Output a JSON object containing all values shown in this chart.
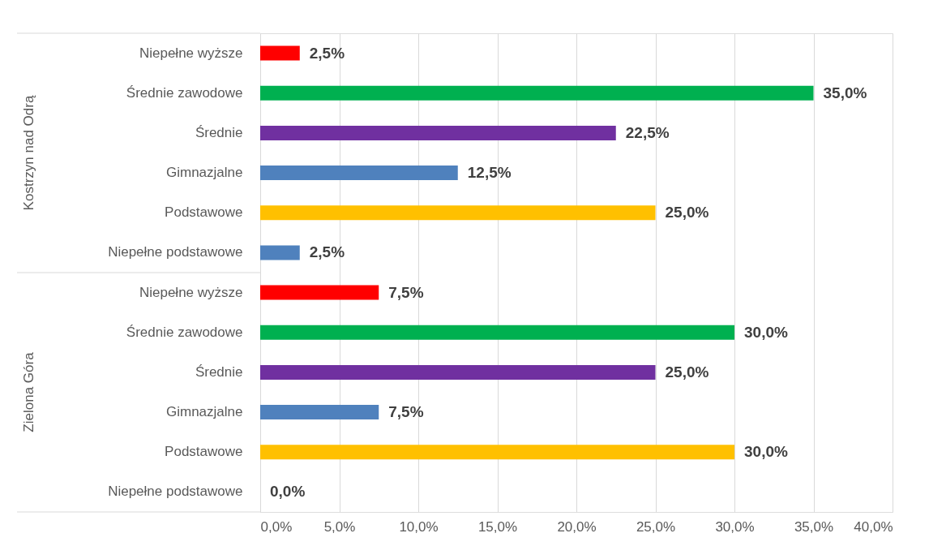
{
  "chart_data": {
    "type": "bar",
    "orientation": "horizontal",
    "categories": [
      "Niepełne wyższe",
      "Średnie zawodowe",
      "Średnie",
      "Gimnazjalne",
      "Podstawowe",
      "Niepełne podstawowe",
      "Niepełne wyższe",
      "Średnie zawodowe",
      "Średnie",
      "Gimnazjalne",
      "Podstawowe",
      "Niepełne podstawowe"
    ],
    "values": [
      2.5,
      35.0,
      22.5,
      12.5,
      25.0,
      2.5,
      7.5,
      30.0,
      25.0,
      7.5,
      30.0,
      0.0
    ],
    "colors": [
      "#ff0000",
      "#00b050",
      "#7030a0",
      "#4f81bd",
      "#ffc000",
      "#4f81bd",
      "#ff0000",
      "#00b050",
      "#7030a0",
      "#4f81bd",
      "#ffc000",
      "#4f81bd"
    ],
    "value_labels": [
      "2,5%",
      "35,0%",
      "22,5%",
      "12,5%",
      "25,0%",
      "2,5%",
      "7,5%",
      "30,0%",
      "25,0%",
      "7,5%",
      "30,0%",
      "0,0%"
    ],
    "xlim": [
      0,
      40
    ],
    "xticks": [
      {
        "value": 0,
        "label": "0,0%"
      },
      {
        "value": 5,
        "label": "5,0%"
      },
      {
        "value": 10,
        "label": "10,0%"
      },
      {
        "value": 15,
        "label": "15,0%"
      },
      {
        "value": 20,
        "label": "20,0%"
      },
      {
        "value": 25,
        "label": "25,0%"
      },
      {
        "value": 30,
        "label": "30,0%"
      },
      {
        "value": 35,
        "label": "35,0%"
      },
      {
        "value": 40,
        "label": "40,0%"
      }
    ],
    "annotations": [
      "Kostrzyn nad Odrą",
      "Zielona Góra"
    ],
    "grid": "x"
  }
}
